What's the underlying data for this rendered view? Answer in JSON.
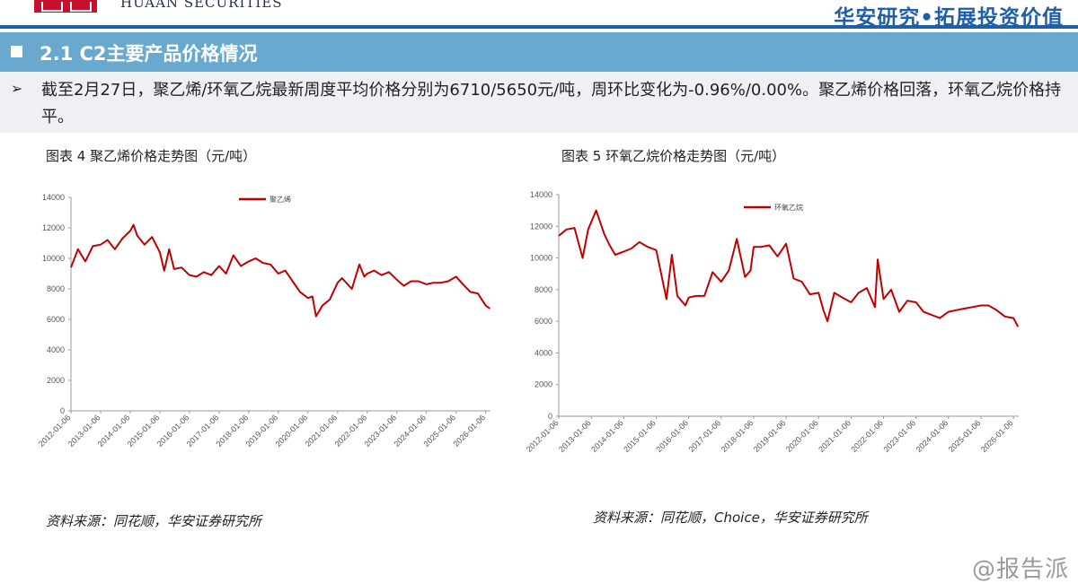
{
  "header": {
    "brand_en": "HUAAN SECURITIES",
    "slogan": "华安研究•拓展投资价值"
  },
  "section": {
    "title": "2.1 C2主要产品价格情况"
  },
  "summary": {
    "bullet": "➢",
    "text": "截至2月27日，聚乙烯/环氧乙烷最新周度平均价格分别为6710/5650元/吨，周环比变化为-0.96%/0.00%。聚乙烯价格回落，环氧乙烷价格持平。"
  },
  "charts": [
    {
      "caption": "图表 4 聚乙烯价格走势图（元/吨）",
      "source": "资料来源：同花顺，华安证券研究所"
    },
    {
      "caption": "图表 5 环氧乙烷价格走势图（元/吨）",
      "source": "资料来源：同花顺，Choice，华安证券研究所"
    }
  ],
  "watermark": "@报告派",
  "chart_data": [
    {
      "type": "line",
      "color": "#c00000",
      "legend_position": "top-center",
      "grid": false,
      "ylim": [
        0,
        14000
      ],
      "yticks": [
        0,
        2000,
        4000,
        6000,
        8000,
        10000,
        12000,
        14000
      ],
      "xlim": [
        "2012-01-06",
        "2026-03-06"
      ],
      "xticks": [
        "2012-01-06",
        "2013-01-06",
        "2014-01-06",
        "2015-01-06",
        "2016-01-06",
        "2017-01-06",
        "2018-01-06",
        "2019-01-06",
        "2020-01-06",
        "2021-01-06",
        "2022-01-06",
        "2023-01-06",
        "2024-01-06",
        "2025-01-06",
        "2026-01-06"
      ],
      "series": [
        {
          "name": "聚乙烯",
          "x": [
            "2012-01-06",
            "2012-04-01",
            "2012-07-01",
            "2012-10-01",
            "2013-01-06",
            "2013-04-01",
            "2013-07-01",
            "2013-10-01",
            "2014-01-06",
            "2014-02-15",
            "2014-04-01",
            "2014-07-01",
            "2014-10-01",
            "2015-01-06",
            "2015-03-01",
            "2015-05-01",
            "2015-07-01",
            "2015-10-01",
            "2016-01-06",
            "2016-04-01",
            "2016-07-01",
            "2016-10-01",
            "2017-01-06",
            "2017-04-01",
            "2017-07-01",
            "2017-10-01",
            "2018-01-06",
            "2018-04-01",
            "2018-07-01",
            "2018-10-01",
            "2019-01-06",
            "2019-04-01",
            "2019-07-01",
            "2019-10-01",
            "2020-01-06",
            "2020-03-01",
            "2020-04-15",
            "2020-07-01",
            "2020-10-01",
            "2021-01-06",
            "2021-03-01",
            "2021-07-01",
            "2021-10-01",
            "2021-12-01",
            "2022-01-06",
            "2022-04-01",
            "2022-07-01",
            "2022-10-01",
            "2023-01-06",
            "2023-04-01",
            "2023-07-01",
            "2023-10-01",
            "2024-01-06",
            "2024-04-01",
            "2024-07-01",
            "2024-10-01",
            "2025-01-06",
            "2025-04-01",
            "2025-07-01",
            "2025-10-01",
            "2026-01-06",
            "2026-02-27"
          ],
          "values": [
            9400,
            10600,
            9800,
            10800,
            10900,
            11200,
            10600,
            11300,
            11800,
            12200,
            11500,
            10900,
            11400,
            10400,
            9200,
            10600,
            9300,
            9400,
            8900,
            8800,
            9100,
            8900,
            9500,
            9000,
            10200,
            9500,
            9800,
            10000,
            9700,
            9600,
            9000,
            9200,
            8500,
            7800,
            7400,
            7500,
            6200,
            6900,
            7300,
            8400,
            8700,
            8000,
            9600,
            8800,
            9000,
            9200,
            8900,
            9100,
            8600,
            8200,
            8500,
            8500,
            8300,
            8400,
            8400,
            8500,
            8800,
            8300,
            7800,
            7700,
            6900,
            6710
          ]
        }
      ]
    },
    {
      "type": "line",
      "color": "#c00000",
      "legend_position": "top-center",
      "grid": false,
      "ylim": [
        0,
        14000
      ],
      "yticks": [
        0,
        2000,
        4000,
        6000,
        8000,
        10000,
        12000,
        14000
      ],
      "xlim": [
        "2012-01-06",
        "2026-03-06"
      ],
      "xticks": [
        "2012-01-06",
        "2013-01-06",
        "2014-01-06",
        "2015-01-06",
        "2016-01-06",
        "2017-01-06",
        "2018-01-06",
        "2019-01-06",
        "2020-01-06",
        "2021-01-06",
        "2022-01-06",
        "2023-01-06",
        "2024-01-06",
        "2025-01-06",
        "2026-01-06"
      ],
      "series": [
        {
          "name": "环氧乙烷",
          "x": [
            "2012-01-06",
            "2012-04-01",
            "2012-07-01",
            "2012-10-01",
            "2012-12-01",
            "2013-03-01",
            "2013-06-01",
            "2013-08-01",
            "2013-10-01",
            "2014-01-06",
            "2014-04-01",
            "2014-07-01",
            "2014-10-01",
            "2015-01-06",
            "2015-05-01",
            "2015-07-01",
            "2015-09-01",
            "2015-12-01",
            "2016-01-06",
            "2016-04-01",
            "2016-07-01",
            "2016-10-01",
            "2017-01-06",
            "2017-04-01",
            "2017-07-01",
            "2017-10-01",
            "2017-12-01",
            "2018-01-06",
            "2018-04-01",
            "2018-07-01",
            "2018-10-01",
            "2019-01-06",
            "2019-04-01",
            "2019-07-01",
            "2019-10-01",
            "2020-01-06",
            "2020-03-01",
            "2020-04-15",
            "2020-07-01",
            "2020-10-01",
            "2021-01-06",
            "2021-04-01",
            "2021-07-01",
            "2021-10-01",
            "2021-11-01",
            "2022-01-06",
            "2022-04-01",
            "2022-07-01",
            "2022-10-01",
            "2023-01-06",
            "2023-04-01",
            "2023-07-01",
            "2023-10-01",
            "2024-01-06",
            "2024-04-01",
            "2024-07-01",
            "2024-10-01",
            "2025-01-06",
            "2025-04-01",
            "2025-07-01",
            "2025-10-01",
            "2026-01-06",
            "2026-02-27"
          ],
          "values": [
            11400,
            11800,
            11900,
            10000,
            11800,
            13000,
            11500,
            10800,
            10200,
            10400,
            10600,
            11000,
            10700,
            10500,
            7400,
            10200,
            7600,
            7000,
            7500,
            7600,
            7600,
            9100,
            8500,
            9200,
            11200,
            8800,
            9200,
            10700,
            10700,
            10800,
            10100,
            10900,
            8700,
            8500,
            7700,
            7800,
            6700,
            6000,
            7800,
            7500,
            7200,
            7800,
            8100,
            6900,
            9900,
            7400,
            8000,
            6600,
            7300,
            7200,
            6600,
            6400,
            6200,
            6600,
            6700,
            6800,
            6900,
            7000,
            7000,
            6700,
            6300,
            6200,
            5650
          ]
        }
      ]
    }
  ]
}
